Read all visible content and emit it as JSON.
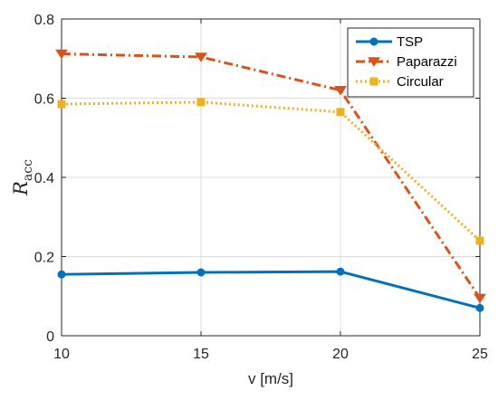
{
  "chart_data": {
    "type": "line",
    "title": "",
    "xlabel": "v [m/s]",
    "ylabel": {
      "main": "R",
      "sub": "acc"
    },
    "x": [
      10,
      15,
      20,
      25
    ],
    "xlim": [
      10,
      25
    ],
    "ylim": [
      0,
      0.8
    ],
    "xticks": [
      "10",
      "15",
      "20",
      "25"
    ],
    "yticks": [
      "0",
      "0.2",
      "0.4",
      "0.6",
      "0.8"
    ],
    "grid": true,
    "legend_position": "top-right",
    "series": [
      {
        "name": "TSP",
        "values": [
          0.155,
          0.16,
          0.162,
          0.07
        ],
        "color": "#0072BD",
        "line_style": "solid",
        "marker": "circle"
      },
      {
        "name": "Paparazzi",
        "values": [
          0.712,
          0.704,
          0.62,
          0.095
        ],
        "color": "#D95319",
        "line_style": "dash-dot",
        "marker": "triangle-down"
      },
      {
        "name": "Circular",
        "values": [
          0.585,
          0.59,
          0.565,
          0.24
        ],
        "color": "#EDB120",
        "line_style": "dotted",
        "marker": "square"
      }
    ]
  }
}
